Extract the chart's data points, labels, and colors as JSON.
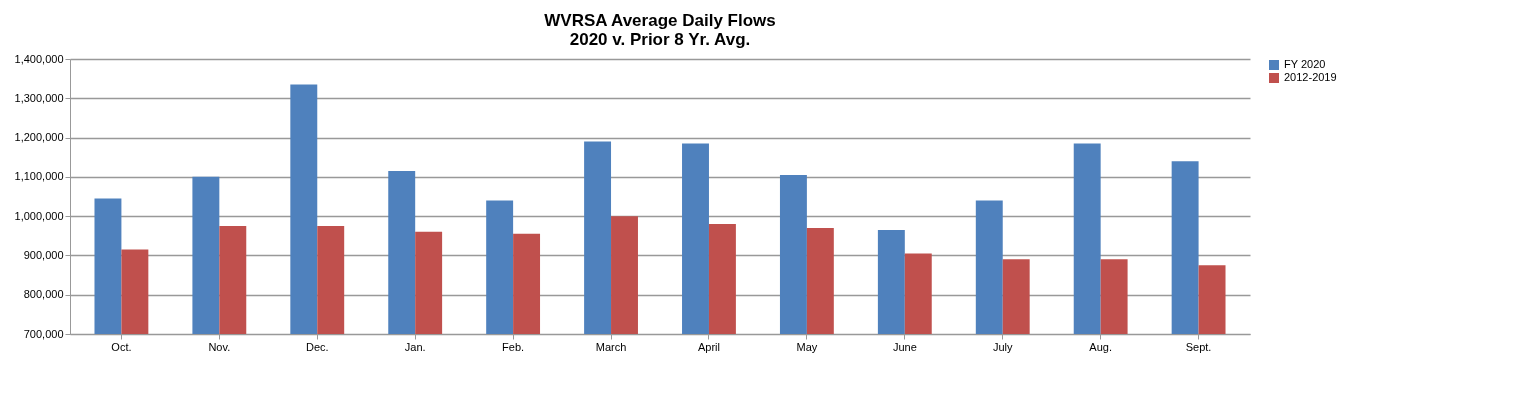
{
  "chart_data": {
    "type": "bar",
    "title": "WVRSA Average Daily Flows",
    "subtitle": "2020 v. Prior 8 Yr. Avg.",
    "categories": [
      "Oct.",
      "Nov.",
      "Dec.",
      "Jan.",
      "Feb.",
      "March",
      "April",
      "May",
      "June",
      "July",
      "Aug.",
      "Sept."
    ],
    "series": [
      {
        "name": "FY 2020",
        "color": "#4f81bd",
        "values": [
          1045000,
          1100000,
          1335000,
          1115000,
          1040000,
          1190000,
          1185000,
          1105000,
          965000,
          1040000,
          1185000,
          1140000
        ]
      },
      {
        "name": "2012-2019",
        "color": "#c0504d",
        "values": [
          915000,
          975000,
          975000,
          960000,
          955000,
          1000000,
          980000,
          970000,
          905000,
          890000,
          890000,
          875000
        ]
      }
    ],
    "ylim": [
      700000,
      1400000
    ],
    "yticks": [
      {
        "value": 700000,
        "label": "700,000"
      },
      {
        "value": 800000,
        "label": "800,000"
      },
      {
        "value": 900000,
        "label": "900,000"
      },
      {
        "value": 1000000,
        "label": "1,000,000"
      },
      {
        "value": 1100000,
        "label": "1,100,000"
      },
      {
        "value": 1200000,
        "label": "1,200,000"
      },
      {
        "value": 1300000,
        "label": "1,300,000"
      },
      {
        "value": 1400000,
        "label": "1,400,000"
      }
    ],
    "grid": "y",
    "legend": "right"
  }
}
